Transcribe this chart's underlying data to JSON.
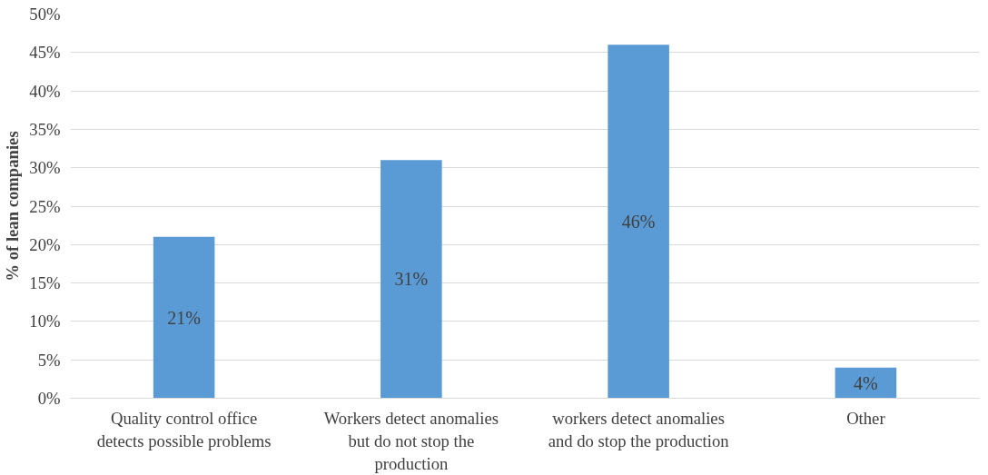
{
  "chart_data": {
    "type": "bar",
    "ylabel": "% of lean companies",
    "categories": [
      "Quality control office detects possible problems",
      "Workers detect anomalies but do not stop the production",
      "workers detect anomalies and do stop the production",
      "Other"
    ],
    "values": [
      21,
      31,
      46,
      4
    ],
    "value_labels": [
      "21%",
      "31%",
      "46%",
      "4%"
    ],
    "color": "#5b9bd5",
    "ylim": [
      0,
      50
    ],
    "yticks": [
      {
        "value": 0,
        "label": "0%"
      },
      {
        "value": 5,
        "label": "5%"
      },
      {
        "value": 10,
        "label": "10%"
      },
      {
        "value": 15,
        "label": "15%"
      },
      {
        "value": 20,
        "label": "20%"
      },
      {
        "value": 25,
        "label": "25%"
      },
      {
        "value": 30,
        "label": "30%"
      },
      {
        "value": 35,
        "label": "35%"
      },
      {
        "value": 40,
        "label": "40%"
      },
      {
        "value": 45,
        "label": "45%"
      },
      {
        "value": 50,
        "label": "50%"
      }
    ],
    "grid": "y"
  }
}
